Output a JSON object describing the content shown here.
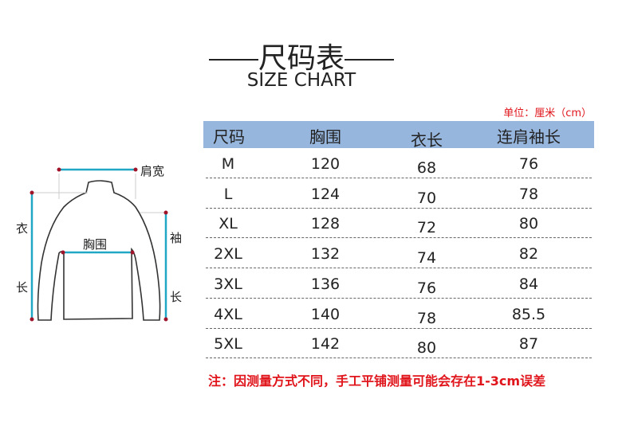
{
  "title": "尺码表",
  "subtitle": "SIZE CHART",
  "unit": "单位：厘米（cm）",
  "diagram": {
    "shoulder": "肩宽",
    "chest": "胸围",
    "length_top": "衣",
    "length_bottom": "长",
    "sleeve_top": "袖",
    "sleeve_bottom": "长",
    "colors": {
      "measure_line": "#21a7c6",
      "endpoint": "#a0142a",
      "outline": "#333333"
    }
  },
  "table": {
    "header_color": "#97b6dd",
    "columns": [
      "尺码",
      "胸围",
      "衣长",
      "连肩袖长"
    ],
    "rows": [
      [
        "M",
        "120",
        "68",
        "76"
      ],
      [
        "L",
        "124",
        "70",
        "78"
      ],
      [
        "XL",
        "128",
        "72",
        "80"
      ],
      [
        "2XL",
        "132",
        "74",
        "82"
      ],
      [
        "3XL",
        "136",
        "76",
        "84"
      ],
      [
        "4XL",
        "140",
        "78",
        "85.5"
      ],
      [
        "5XL",
        "142",
        "80",
        "87"
      ]
    ]
  },
  "note": "注：因测量方式不同，手工平铺测量可能会存在1-3cm误差"
}
